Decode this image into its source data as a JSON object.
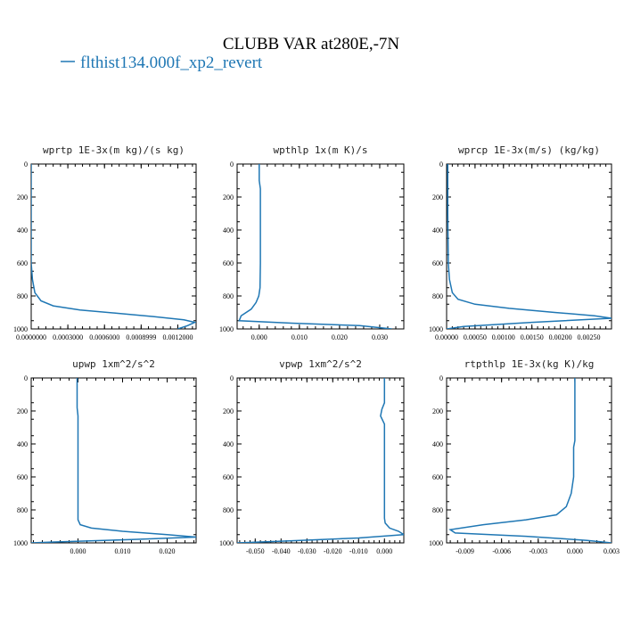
{
  "figure": {
    "title": "CLUBB VAR at280E,-7N",
    "legend_label": "flthist134.000f_xp2_revert",
    "series_color": "#1f77b4"
  },
  "chart_data": [
    {
      "type": "line",
      "title": "wprtp  1E-3x(m kg)/(s kg)",
      "xlim": [
        0.0,
        0.00135
      ],
      "ylim": [
        1000,
        0
      ],
      "xticks": [
        0.0,
        0.0003,
        0.0006,
        0.0009,
        0.0012
      ],
      "xticklabels": [
        "0.0000000",
        "0.0003000",
        "0.0006000",
        "0.0008999",
        "0.0012000"
      ],
      "yticks": [
        0,
        200,
        400,
        600,
        800,
        1000
      ],
      "x": [
        0.0,
        0.0,
        0.0,
        1e-05,
        3e-05,
        8e-05,
        0.00018,
        0.0004,
        0.0007,
        0.001,
        0.00125,
        0.00134,
        0.00128,
        0.0012
      ],
      "y": [
        0,
        400,
        600,
        700,
        780,
        830,
        860,
        885,
        905,
        925,
        945,
        960,
        980,
        1000
      ]
    },
    {
      "type": "line",
      "title": "wpthlp  1x(m K)/s",
      "xlim": [
        -0.0055,
        0.036
      ],
      "ylim": [
        1000,
        0
      ],
      "xticks": [
        0.0,
        0.01,
        0.02,
        0.03
      ],
      "xticklabels": [
        "0.000",
        "0.010",
        "0.020",
        "0.030"
      ],
      "yticks": [
        0,
        200,
        400,
        600,
        800,
        1000
      ],
      "x": [
        0.0,
        0.0,
        0.0003,
        0.0003,
        0.0003,
        0.0002,
        -0.0001,
        -0.0008,
        -0.002,
        -0.0045,
        -0.005,
        0.008,
        0.025,
        0.033
      ],
      "y": [
        0,
        100,
        150,
        300,
        600,
        750,
        800,
        840,
        880,
        920,
        950,
        965,
        980,
        1000
      ]
    },
    {
      "type": "line",
      "title": "wprcp  1E-3x(m/s) (kg/kg)",
      "xlim": [
        0.0,
        0.0029
      ],
      "ylim": [
        1000,
        0
      ],
      "xticks": [
        0.0,
        0.0005,
        0.001,
        0.0015,
        0.002,
        0.0025
      ],
      "xticklabels": [
        "0.00000",
        "0.00050",
        "0.00100",
        "0.00150",
        "0.00200",
        "0.00250"
      ],
      "yticks": [
        0,
        200,
        400,
        600,
        800,
        1000
      ],
      "x": [
        2e-05,
        2e-05,
        3e-05,
        5e-05,
        0.0001,
        0.0002,
        0.0005,
        0.0011,
        0.0019,
        0.0026,
        0.0029,
        0.0015,
        0.0003,
        0.0
      ],
      "y": [
        0,
        300,
        600,
        700,
        780,
        820,
        850,
        875,
        900,
        920,
        935,
        960,
        985,
        1000
      ]
    },
    {
      "type": "line",
      "title": "upwp  1xm^2/s^2",
      "xlim": [
        -0.0105,
        0.0265
      ],
      "ylim": [
        1000,
        0
      ],
      "xticks": [
        0.0,
        0.01,
        0.02
      ],
      "xticklabels": [
        "0.000",
        "0.010",
        "0.020"
      ],
      "yticks": [
        0,
        200,
        400,
        600,
        800,
        1000
      ],
      "x": [
        -0.0002,
        -0.0002,
        0.0,
        0.0,
        0.0,
        0.0,
        0.0005,
        0.003,
        0.01,
        0.02,
        0.0265,
        0.012,
        -0.006,
        -0.0105
      ],
      "y": [
        0,
        180,
        230,
        400,
        700,
        860,
        890,
        910,
        930,
        950,
        965,
        980,
        995,
        1000
      ]
    },
    {
      "type": "line",
      "title": "vpwp  1xm^2/s^2",
      "xlim": [
        -0.057,
        0.0075
      ],
      "ylim": [
        1000,
        0
      ],
      "xticks": [
        -0.05,
        -0.04,
        -0.03,
        -0.02,
        -0.01,
        0.0
      ],
      "xticklabels": [
        "-0.050",
        "-0.040",
        "-0.030",
        "-0.020",
        "-0.010",
        "0.000"
      ],
      "yticks": [
        0,
        200,
        400,
        600,
        800,
        1000
      ],
      "x": [
        0.0,
        0.0,
        -0.001,
        -0.0015,
        0.0,
        0.0,
        0.0,
        0.0003,
        0.002,
        0.0055,
        0.0075,
        -0.01,
        -0.04,
        -0.057
      ],
      "y": [
        0,
        150,
        190,
        230,
        280,
        600,
        850,
        880,
        910,
        930,
        950,
        970,
        990,
        1000
      ]
    },
    {
      "type": "line",
      "title": "rtpthlp  1E-3x(kg K)/kg",
      "xlim": [
        -0.0105,
        0.003
      ],
      "ylim": [
        1000,
        0
      ],
      "xticks": [
        -0.009,
        -0.006,
        -0.003,
        0.0,
        0.003
      ],
      "xticklabels": [
        "-0.009",
        "-0.006",
        "-0.003",
        "0.000",
        "0.003"
      ],
      "yticks": [
        0,
        200,
        400,
        600,
        800,
        1000
      ],
      "x": [
        0.0,
        0.0,
        -0.0001,
        -0.0001,
        -0.0003,
        -0.0007,
        -0.0015,
        -0.004,
        -0.0075,
        -0.0102,
        -0.0098,
        -0.004,
        0.001,
        0.003
      ],
      "y": [
        0,
        380,
        420,
        600,
        700,
        780,
        830,
        860,
        890,
        920,
        940,
        960,
        985,
        1000
      ]
    }
  ]
}
